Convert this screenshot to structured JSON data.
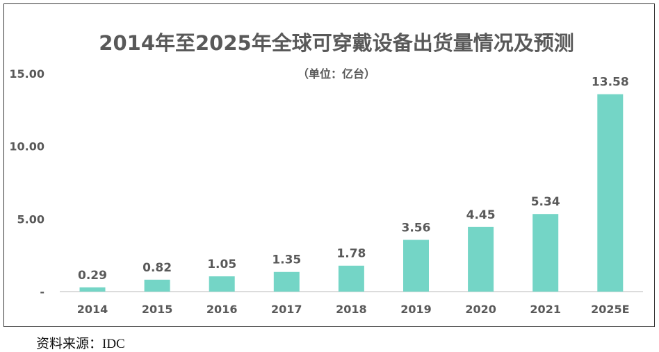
{
  "chart_data": {
    "type": "bar",
    "title": "2014年至2025年全球可穿戴设备出货量情况及预测",
    "subtitle": "（单位：亿台）",
    "categories": [
      "2014",
      "2015",
      "2016",
      "2017",
      "2018",
      "2019",
      "2020",
      "2021",
      "2025E"
    ],
    "values": [
      0.29,
      0.82,
      1.05,
      1.35,
      1.78,
      3.56,
      4.45,
      5.34,
      13.58
    ],
    "data_labels": [
      "0.29",
      "0.82",
      "1.05",
      "1.35",
      "1.78",
      "3.56",
      "4.45",
      "5.34",
      "13.58"
    ],
    "yticks": [
      0,
      5,
      10,
      15
    ],
    "ytick_labels": [
      "-",
      "5.00",
      "10.00",
      "15.00"
    ],
    "ylim": [
      0,
      15
    ],
    "grid": false,
    "bar_color": "#74d5c6",
    "text_color": "#595959"
  },
  "source": "资料来源：IDC"
}
